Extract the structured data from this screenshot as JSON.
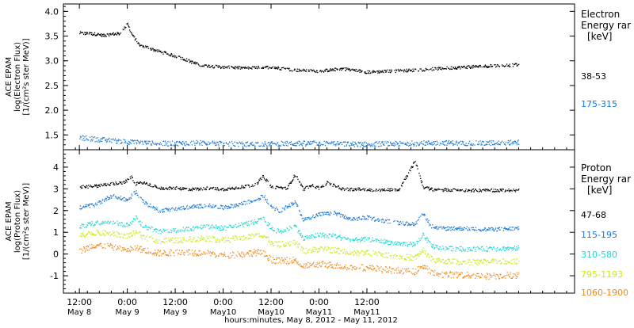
{
  "chart_data": [
    {
      "type": "scatter",
      "ylabel": [
        "ACE EPAM",
        "log(Electron Flux)",
        "[1/(cm²s ster MeV)]"
      ],
      "ylim": [
        1.2,
        4.15
      ],
      "yticks": [
        "1.5",
        "2.0",
        "2.5",
        "3.0",
        "3.5",
        "4.0"
      ],
      "ytick_values": [
        1.5,
        2.0,
        2.5,
        3.0,
        3.5,
        4.0
      ],
      "legend_title": [
        "Electron",
        "Energy rar",
        "[keV]"
      ],
      "grid": false,
      "series": [
        {
          "name": "38-53",
          "color": "#000000",
          "x_hours": [
            0,
            4,
            6,
            8,
            10,
            12,
            13,
            15,
            16,
            17,
            19,
            22,
            26,
            30,
            36,
            42,
            48,
            54,
            60,
            66,
            72,
            78,
            84,
            90,
            96,
            102,
            108,
            110
          ],
          "y": [
            3.57,
            3.55,
            3.52,
            3.55,
            3.56,
            3.75,
            3.55,
            3.32,
            3.3,
            3.28,
            3.22,
            3.15,
            3.05,
            2.92,
            2.88,
            2.86,
            2.88,
            2.82,
            2.8,
            2.85,
            2.78,
            2.8,
            2.82,
            2.85,
            2.88,
            2.9,
            2.92,
            2.93
          ]
        },
        {
          "name": "175-315",
          "color": "#1a78d4",
          "x_hours": [
            0,
            10,
            20,
            30,
            40,
            50,
            60,
            70,
            80,
            90,
            100,
            110
          ],
          "y": [
            1.45,
            1.38,
            1.33,
            1.35,
            1.32,
            1.33,
            1.34,
            1.32,
            1.33,
            1.35,
            1.34,
            1.36
          ]
        }
      ]
    },
    {
      "type": "scatter",
      "ylabel": [
        "ACE EPAM",
        "log(Proton Flux)",
        "[1/(cm²s ster MeV)]"
      ],
      "ylim": [
        -1.8,
        4.8
      ],
      "yticks": [
        "-1",
        "0",
        "1",
        "2",
        "3",
        "4"
      ],
      "ytick_values": [
        -1,
        0,
        1,
        2,
        3,
        4
      ],
      "legend_title": [
        "Proton",
        "Energy rar",
        "[keV]"
      ],
      "grid": false,
      "series": [
        {
          "name": "47-68",
          "color": "#000000",
          "x_hours": [
            0,
            4,
            8,
            11,
            13,
            14,
            16,
            20,
            24,
            28,
            32,
            36,
            40,
            44,
            46,
            48,
            52,
            54,
            56,
            58,
            60,
            62,
            66,
            70,
            74,
            80,
            84,
            86,
            88,
            90,
            96,
            102,
            110
          ],
          "y": [
            3.1,
            3.15,
            3.25,
            3.3,
            3.55,
            3.25,
            3.3,
            3.05,
            3.05,
            3.0,
            3.05,
            3.0,
            3.1,
            3.2,
            3.6,
            3.1,
            3.05,
            3.7,
            3.0,
            3.2,
            3.05,
            3.3,
            3.0,
            3.0,
            2.95,
            3.0,
            4.3,
            3.1,
            3.0,
            2.98,
            2.95,
            2.95,
            2.95
          ]
        },
        {
          "name": "115-195",
          "color": "#1a78d4",
          "x_hours": [
            0,
            4,
            8,
            12,
            14,
            16,
            20,
            24,
            28,
            32,
            36,
            40,
            44,
            46,
            48,
            50,
            54,
            56,
            60,
            64,
            68,
            72,
            76,
            80,
            84,
            86,
            88,
            90,
            96,
            102,
            110
          ],
          "y": [
            2.15,
            2.3,
            2.7,
            2.5,
            2.9,
            2.4,
            2.0,
            2.1,
            2.2,
            2.25,
            2.15,
            2.3,
            2.5,
            2.7,
            2.2,
            2.0,
            2.4,
            1.6,
            1.85,
            1.9,
            1.6,
            1.7,
            1.55,
            1.45,
            1.4,
            1.9,
            1.3,
            1.2,
            1.2,
            1.15,
            1.2
          ]
        },
        {
          "name": "310-580",
          "color": "#1fd6d0",
          "x_hours": [
            0,
            4,
            8,
            12,
            14,
            16,
            20,
            24,
            28,
            32,
            36,
            40,
            44,
            46,
            48,
            50,
            54,
            56,
            60,
            64,
            68,
            72,
            76,
            80,
            84,
            86,
            88,
            90,
            96,
            102,
            110
          ],
          "y": [
            1.3,
            1.45,
            1.5,
            1.35,
            1.7,
            1.3,
            1.05,
            1.1,
            1.2,
            1.3,
            1.2,
            1.35,
            1.5,
            1.65,
            1.2,
            1.05,
            1.3,
            0.75,
            0.9,
            0.85,
            0.65,
            0.7,
            0.6,
            0.5,
            0.45,
            0.9,
            0.4,
            0.3,
            0.25,
            0.25,
            0.3
          ]
        },
        {
          "name": "795-1193",
          "color": "#c9ea1a",
          "x_hours": [
            0,
            4,
            8,
            12,
            14,
            16,
            20,
            24,
            28,
            32,
            36,
            40,
            44,
            46,
            48,
            50,
            54,
            56,
            60,
            64,
            68,
            72,
            76,
            80,
            84,
            86,
            88,
            90,
            96,
            102,
            110
          ],
          "y": [
            0.85,
            1.0,
            0.95,
            0.85,
            1.0,
            0.8,
            0.6,
            0.65,
            0.7,
            0.75,
            0.65,
            0.75,
            0.85,
            0.9,
            0.55,
            0.45,
            0.55,
            0.15,
            0.25,
            0.2,
            0.05,
            0.1,
            0.0,
            -0.1,
            -0.15,
            0.2,
            -0.2,
            -0.3,
            -0.35,
            -0.35,
            -0.3
          ]
        },
        {
          "name": "1060-1900",
          "color": "#f08a1a",
          "x_hours": [
            0,
            4,
            8,
            12,
            14,
            16,
            20,
            24,
            28,
            32,
            36,
            40,
            44,
            46,
            48,
            50,
            54,
            56,
            60,
            64,
            68,
            72,
            76,
            80,
            84,
            86,
            88,
            90,
            96,
            102,
            110
          ],
          "y": [
            0.15,
            0.45,
            0.35,
            0.2,
            0.3,
            0.2,
            0.05,
            0.1,
            0.1,
            0.05,
            -0.05,
            0.0,
            0.1,
            0.05,
            -0.25,
            -0.3,
            -0.25,
            -0.55,
            -0.45,
            -0.5,
            -0.6,
            -0.6,
            -0.7,
            -0.75,
            -0.8,
            -0.5,
            -0.85,
            -0.9,
            -0.95,
            -1.0,
            -0.95
          ]
        }
      ]
    }
  ],
  "x_axis": {
    "range_hours": [
      -4,
      124
    ],
    "ticks": [
      {
        "h": 0,
        "l1": "12:00",
        "l2": "May 8"
      },
      {
        "h": 12,
        "l1": "0:00",
        "l2": "May 9"
      },
      {
        "h": 24,
        "l1": "12:00",
        "l2": "May 9"
      },
      {
        "h": 36,
        "l1": "0:00",
        "l2": "May10"
      },
      {
        "h": 48,
        "l1": "12:00",
        "l2": "May10"
      },
      {
        "h": 60,
        "l1": "0:00",
        "l2": "May11"
      },
      {
        "h": 72,
        "l1": "12:00",
        "l2": "May11"
      }
    ],
    "label": "hours:minutes, May  8, 2012 - May 11, 2012"
  },
  "styles": {
    "axis_color": "#000000",
    "tick_text_color": "#000000"
  }
}
